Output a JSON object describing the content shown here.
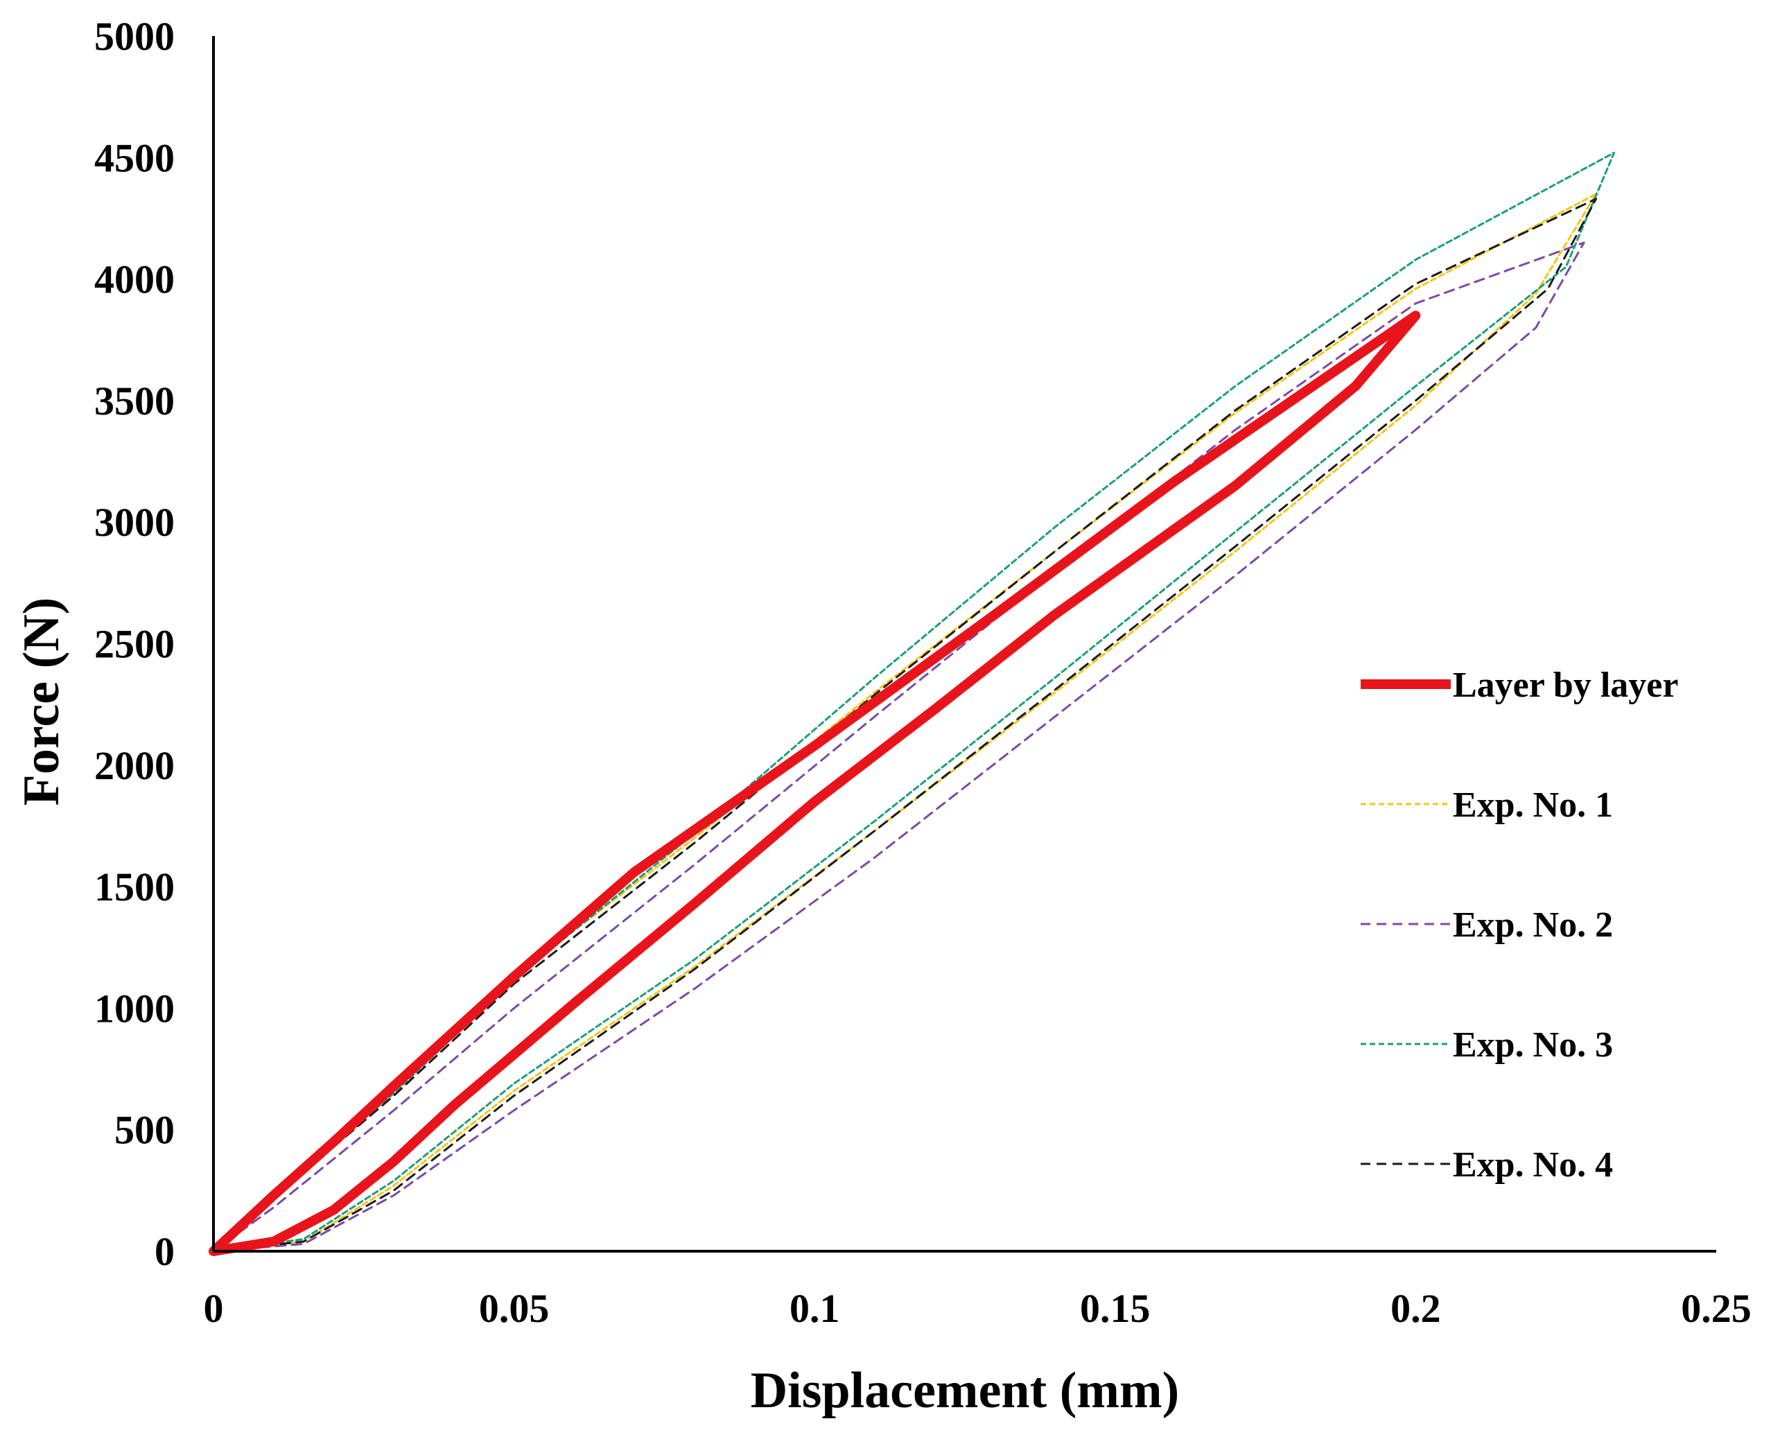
{
  "chart_data": {
    "type": "line",
    "title": "",
    "xlabel": "Displacement (mm)",
    "ylabel": "Force (N)",
    "xlim": [
      0,
      0.25
    ],
    "ylim": [
      0,
      5000
    ],
    "x_ticks": [
      0,
      0.05,
      0.1,
      0.15,
      0.2,
      0.25
    ],
    "x_tick_labels": [
      "0",
      "0.05",
      "0.1",
      "0.15",
      "0.2",
      "0.25"
    ],
    "y_ticks": [
      0,
      500,
      1000,
      1500,
      2000,
      2500,
      3000,
      3500,
      4000,
      4500,
      5000
    ],
    "y_tick_labels": [
      "0",
      "500",
      "1000",
      "1500",
      "2000",
      "2500",
      "3000",
      "3500",
      "4000",
      "4500",
      "5000"
    ],
    "grid": false,
    "legend_position": "right",
    "series": [
      {
        "name": "Layer by layer",
        "color": "#e8141c",
        "style": "solid",
        "points": [
          [
            0,
            0
          ],
          [
            0.01,
            230
          ],
          [
            0.02,
            450
          ],
          [
            0.03,
            680
          ],
          [
            0.05,
            1130
          ],
          [
            0.07,
            1560
          ],
          [
            0.1,
            2080
          ],
          [
            0.13,
            2620
          ],
          [
            0.16,
            3170
          ],
          [
            0.2,
            3850
          ],
          [
            0.19,
            3560
          ],
          [
            0.17,
            3150
          ],
          [
            0.14,
            2620
          ],
          [
            0.12,
            2230
          ],
          [
            0.1,
            1850
          ],
          [
            0.08,
            1430
          ],
          [
            0.06,
            1020
          ],
          [
            0.04,
            600
          ],
          [
            0.03,
            370
          ],
          [
            0.02,
            170
          ],
          [
            0.01,
            40
          ],
          [
            0,
            0
          ]
        ]
      },
      {
        "name": "Exp. No. 1",
        "color": "#f5c518",
        "style": "dotted",
        "points": [
          [
            0,
            0
          ],
          [
            0.01,
            230
          ],
          [
            0.03,
            660
          ],
          [
            0.05,
            1130
          ],
          [
            0.08,
            1700
          ],
          [
            0.11,
            2300
          ],
          [
            0.14,
            2880
          ],
          [
            0.17,
            3450
          ],
          [
            0.2,
            3960
          ],
          [
            0.23,
            4350
          ],
          [
            0.22,
            3940
          ],
          [
            0.2,
            3480
          ],
          [
            0.17,
            2880
          ],
          [
            0.14,
            2300
          ],
          [
            0.11,
            1730
          ],
          [
            0.08,
            1170
          ],
          [
            0.05,
            660
          ],
          [
            0.03,
            270
          ],
          [
            0.015,
            40
          ],
          [
            0,
            0
          ]
        ]
      },
      {
        "name": "Exp. No. 2",
        "color": "#7a4aa8",
        "style": "dashed",
        "points": [
          [
            0,
            0
          ],
          [
            0.01,
            180
          ],
          [
            0.03,
            580
          ],
          [
            0.05,
            1000
          ],
          [
            0.08,
            1590
          ],
          [
            0.11,
            2200
          ],
          [
            0.14,
            2800
          ],
          [
            0.17,
            3380
          ],
          [
            0.2,
            3900
          ],
          [
            0.228,
            4150
          ],
          [
            0.22,
            3800
          ],
          [
            0.2,
            3380
          ],
          [
            0.17,
            2780
          ],
          [
            0.14,
            2200
          ],
          [
            0.11,
            1620
          ],
          [
            0.08,
            1080
          ],
          [
            0.05,
            580
          ],
          [
            0.03,
            230
          ],
          [
            0.015,
            30
          ],
          [
            0,
            0
          ]
        ]
      },
      {
        "name": "Exp. No. 3",
        "color": "#1e9e78",
        "style": "dotted",
        "points": [
          [
            0,
            0
          ],
          [
            0.01,
            230
          ],
          [
            0.03,
            650
          ],
          [
            0.05,
            1120
          ],
          [
            0.08,
            1720
          ],
          [
            0.11,
            2360
          ],
          [
            0.14,
            2980
          ],
          [
            0.17,
            3560
          ],
          [
            0.2,
            4080
          ],
          [
            0.233,
            4520
          ],
          [
            0.225,
            4050
          ],
          [
            0.2,
            3560
          ],
          [
            0.17,
            2960
          ],
          [
            0.14,
            2360
          ],
          [
            0.11,
            1770
          ],
          [
            0.08,
            1200
          ],
          [
            0.05,
            690
          ],
          [
            0.03,
            290
          ],
          [
            0.015,
            50
          ],
          [
            0,
            0
          ]
        ]
      },
      {
        "name": "Exp. No. 4",
        "color": "#1a1a1a",
        "style": "dashed",
        "points": [
          [
            0,
            0
          ],
          [
            0.01,
            220
          ],
          [
            0.03,
            640
          ],
          [
            0.05,
            1100
          ],
          [
            0.08,
            1680
          ],
          [
            0.11,
            2290
          ],
          [
            0.14,
            2880
          ],
          [
            0.17,
            3460
          ],
          [
            0.2,
            3980
          ],
          [
            0.23,
            4330
          ],
          [
            0.222,
            3960
          ],
          [
            0.2,
            3500
          ],
          [
            0.17,
            2900
          ],
          [
            0.14,
            2310
          ],
          [
            0.11,
            1730
          ],
          [
            0.08,
            1160
          ],
          [
            0.05,
            640
          ],
          [
            0.03,
            250
          ],
          [
            0.015,
            40
          ],
          [
            0,
            0
          ]
        ]
      }
    ]
  }
}
